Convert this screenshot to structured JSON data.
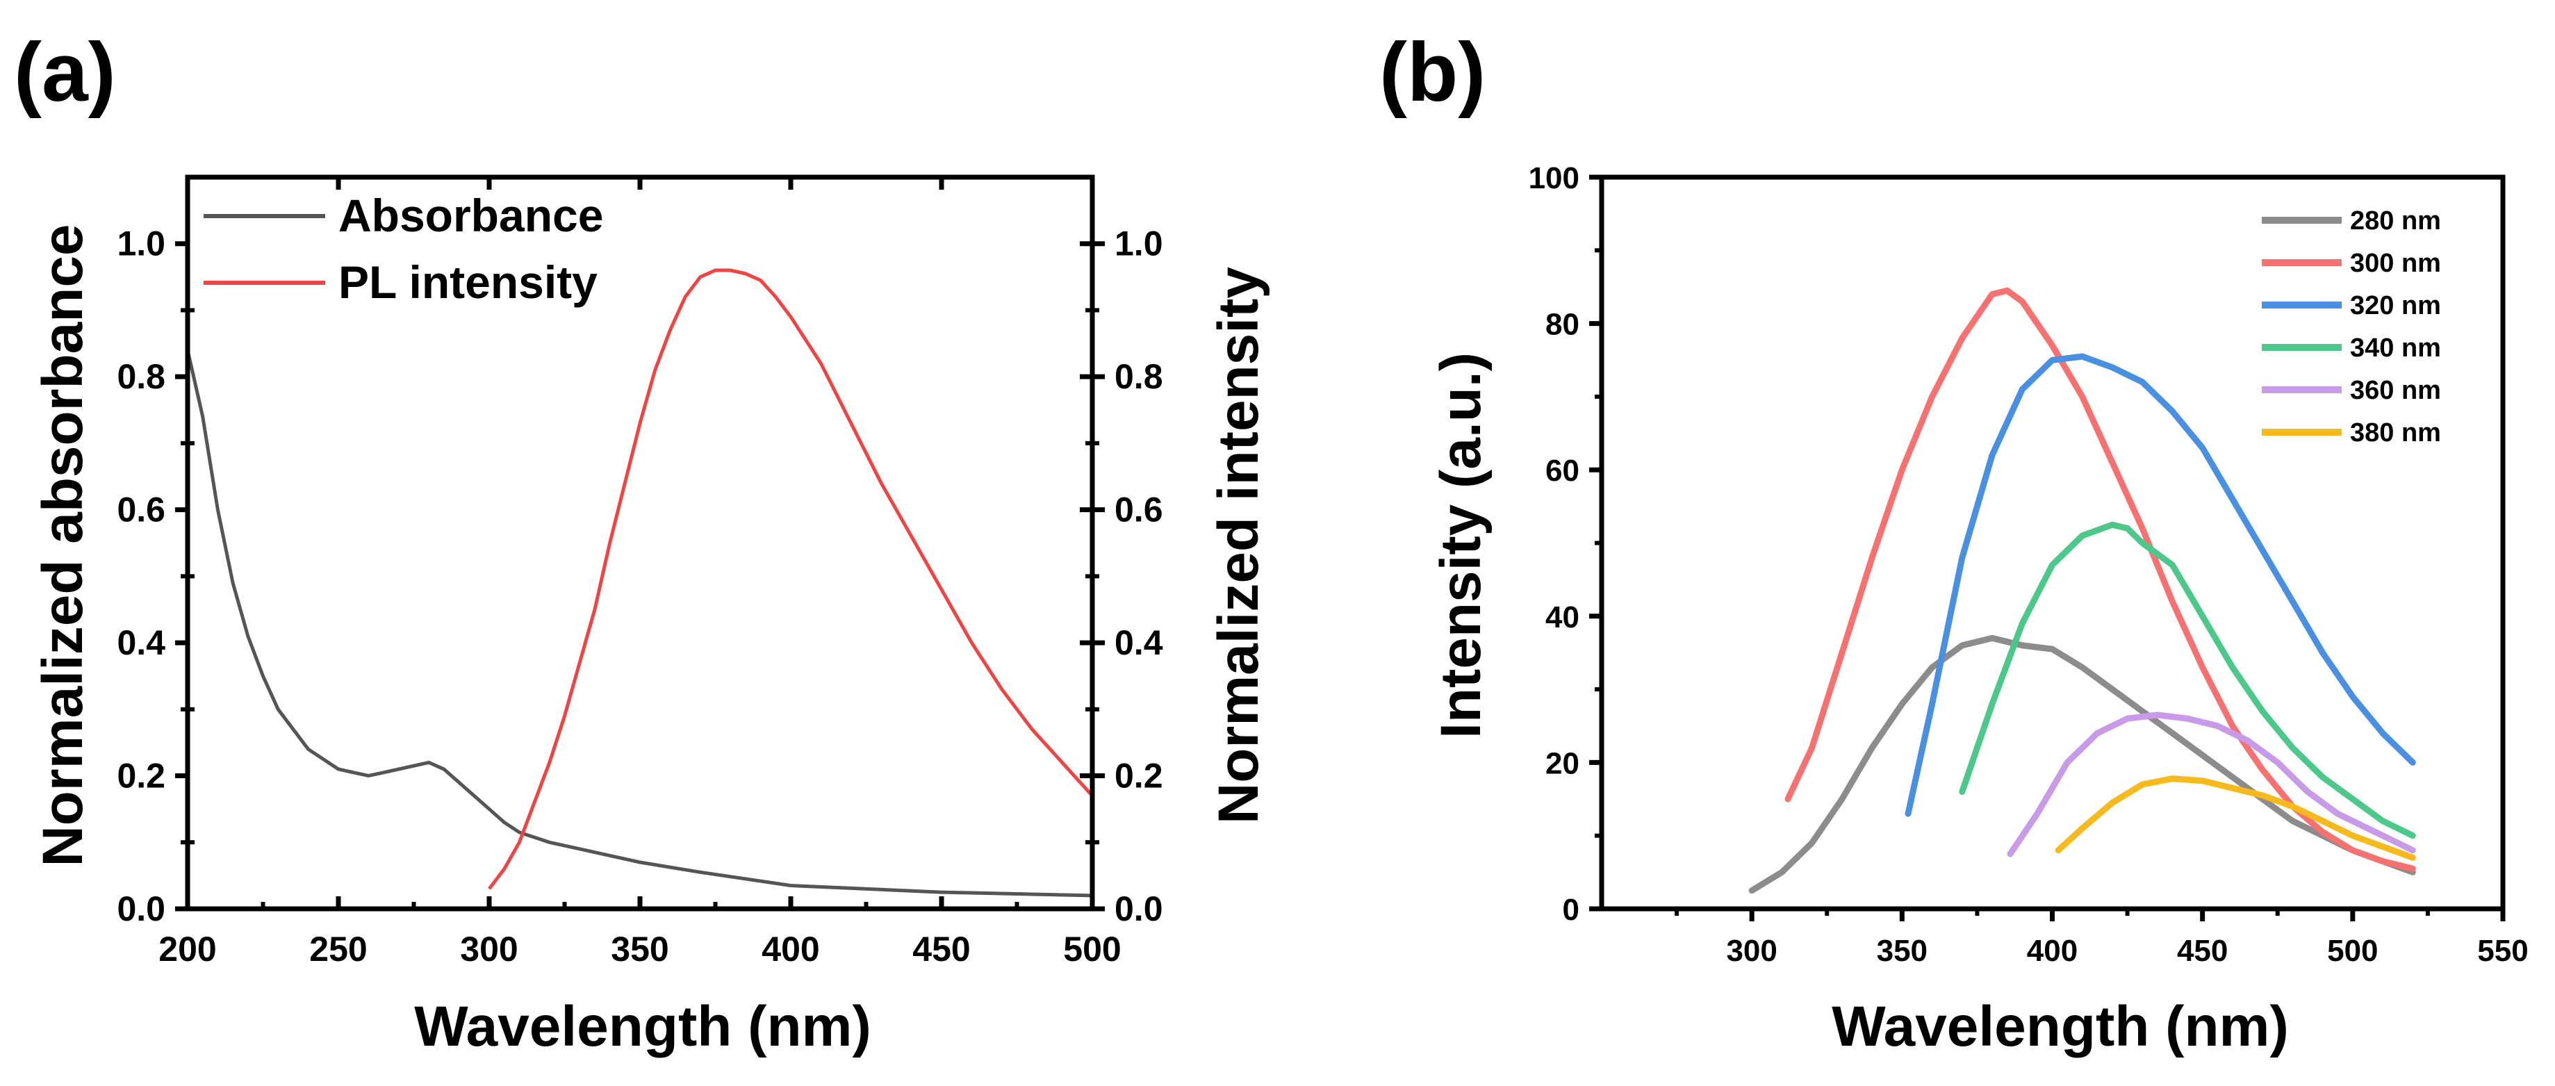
{
  "panels": [
    {
      "panel_label": "(a)",
      "chart_data": {
        "type": "line",
        "title": "",
        "xlabel": "Wavelength (nm)",
        "ylabel": "Normalized absorbance",
        "y2label": "Normalized intensity",
        "xlim": [
          200,
          500
        ],
        "ylim": [
          0,
          1.1
        ],
        "y2lim": [
          0,
          1.1
        ],
        "x_ticks": [
          "200",
          "250",
          "300",
          "350",
          "400",
          "450",
          "500"
        ],
        "y_ticks": [
          "0.0",
          "0.2",
          "0.4",
          "0.6",
          "0.8",
          "1.0"
        ],
        "y2_ticks": [
          "0.0",
          "0.2",
          "0.4",
          "0.6",
          "0.8",
          "1.0"
        ],
        "grid": false,
        "legend": "top-left",
        "series": [
          {
            "name": "Absorbance",
            "color": "#555555",
            "x": [
              200,
              205,
              210,
              215,
              220,
              225,
              230,
              240,
              250,
              255,
              260,
              265,
              270,
              275,
              280,
              285,
              290,
              295,
              300,
              305,
              310,
              320,
              330,
              340,
              350,
              370,
              400,
              450,
              500
            ],
            "y": [
              0.84,
              0.74,
              0.6,
              0.49,
              0.41,
              0.35,
              0.3,
              0.24,
              0.21,
              0.205,
              0.2,
              0.205,
              0.21,
              0.215,
              0.22,
              0.21,
              0.19,
              0.17,
              0.15,
              0.13,
              0.115,
              0.1,
              0.09,
              0.08,
              0.07,
              0.055,
              0.035,
              0.025,
              0.02
            ]
          },
          {
            "name": "PL intensity",
            "color": "#ef4444",
            "x": [
              300,
              305,
              310,
              315,
              320,
              325,
              330,
              335,
              340,
              345,
              350,
              355,
              360,
              365,
              370,
              375,
              380,
              385,
              390,
              395,
              400,
              410,
              420,
              430,
              440,
              450,
              460,
              470,
              480,
              490,
              500
            ],
            "y": [
              0.03,
              0.06,
              0.1,
              0.16,
              0.22,
              0.29,
              0.37,
              0.45,
              0.55,
              0.64,
              0.73,
              0.81,
              0.87,
              0.92,
              0.95,
              0.96,
              0.96,
              0.955,
              0.945,
              0.92,
              0.89,
              0.82,
              0.73,
              0.64,
              0.56,
              0.48,
              0.4,
              0.33,
              0.27,
              0.22,
              0.17
            ]
          }
        ]
      }
    },
    {
      "panel_label": "(b)",
      "chart_data": {
        "type": "line",
        "title": "",
        "xlabel": "Wavelength (nm)",
        "ylabel": "Intensity (a.u.)",
        "xlim": [
          250,
          550
        ],
        "ylim": [
          0,
          100
        ],
        "x_ticks": [
          "300",
          "350",
          "400",
          "450",
          "500",
          "550"
        ],
        "x_tick_values": [
          300,
          350,
          400,
          450,
          500,
          550
        ],
        "y_ticks": [
          "0",
          "20",
          "40",
          "60",
          "80",
          "100"
        ],
        "y_tick_values": [
          0,
          20,
          40,
          60,
          80,
          100
        ],
        "grid": false,
        "legend": "top-right",
        "series": [
          {
            "name": "280 nm",
            "color": "#8c8c8c",
            "x": [
              300,
              310,
              320,
              330,
              340,
              350,
              360,
              370,
              380,
              390,
              400,
              410,
              420,
              430,
              440,
              450,
              460,
              470,
              480,
              490,
              500,
              510,
              520
            ],
            "y": [
              2.5,
              5,
              9,
              15,
              22,
              28,
              33,
              36,
              37,
              36,
              35.5,
              33,
              30,
              27,
              24,
              21,
              18,
              15,
              12,
              10,
              8,
              6.5,
              5
            ]
          },
          {
            "name": "300 nm",
            "color": "#f87171",
            "x": [
              312,
              320,
              330,
              340,
              350,
              360,
              370,
              380,
              385,
              390,
              400,
              410,
              420,
              430,
              440,
              450,
              460,
              470,
              480,
              490,
              500,
              510,
              520
            ],
            "y": [
              15,
              22,
              35,
              48,
              60,
              70,
              78,
              84,
              84.5,
              83,
              77,
              70,
              61,
              52,
              42,
              33,
              25,
              19,
              14,
              10.5,
              8,
              6.5,
              5.5
            ]
          },
          {
            "name": "320 nm",
            "color": "#4a90e2",
            "x": [
              352,
              360,
              370,
              380,
              390,
              400,
              410,
              420,
              430,
              440,
              450,
              460,
              470,
              480,
              490,
              500,
              510,
              520
            ],
            "y": [
              13,
              28,
              48,
              62,
              71,
              75,
              75.5,
              74,
              72,
              68,
              63,
              56,
              49,
              42,
              35,
              29,
              24,
              20
            ]
          },
          {
            "name": "340 nm",
            "color": "#4cc98a",
            "x": [
              370,
              380,
              390,
              400,
              410,
              420,
              425,
              430,
              440,
              450,
              460,
              470,
              480,
              490,
              500,
              510,
              520
            ],
            "y": [
              16,
              28,
              39,
              47,
              51,
              52.5,
              52,
              50,
              47,
              40,
              33,
              27,
              22,
              18,
              15,
              12,
              10
            ]
          },
          {
            "name": "360 nm",
            "color": "#c89ae8",
            "x": [
              386,
              395,
              405,
              415,
              425,
              435,
              445,
              455,
              465,
              475,
              485,
              495,
              505,
              515,
              520
            ],
            "y": [
              7.5,
              13,
              20,
              24,
              26,
              26.5,
              26,
              25,
              23,
              20,
              16,
              13,
              11,
              9,
              8
            ]
          },
          {
            "name": "380 nm",
            "color": "#f8b91c",
            "x": [
              402,
              410,
              420,
              430,
              440,
              450,
              460,
              470,
              480,
              490,
              500,
              510,
              520
            ],
            "y": [
              8,
              11,
              14.5,
              17,
              17.8,
              17.5,
              16.5,
              15.5,
              14,
              12,
              10,
              8.5,
              7
            ]
          }
        ]
      }
    }
  ]
}
